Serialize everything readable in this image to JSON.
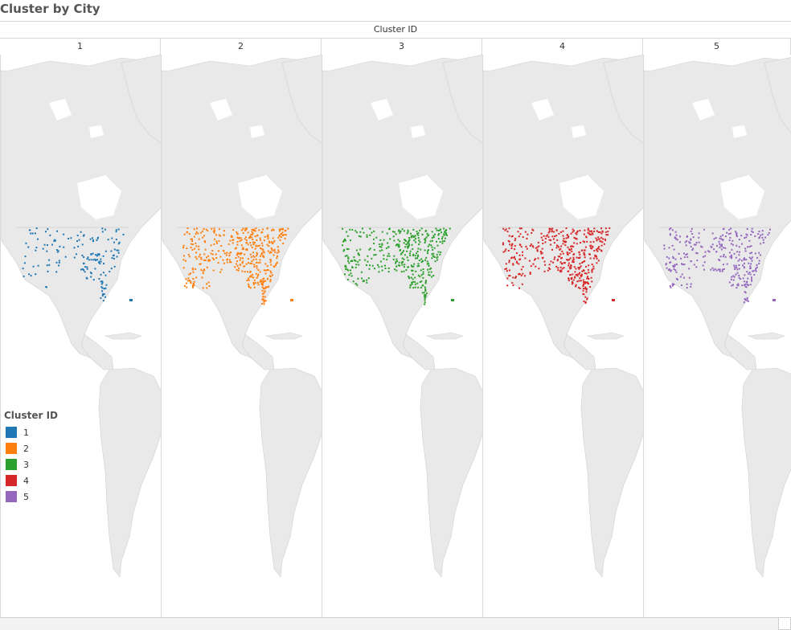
{
  "page": {
    "title": "Cluster by City"
  },
  "header": {
    "field": "Cluster ID"
  },
  "panes": [
    {
      "id": "1",
      "color": "#1f77b4",
      "density": 0.35
    },
    {
      "id": "2",
      "color": "#ff7f0e",
      "density": 1.0
    },
    {
      "id": "3",
      "color": "#2ca02c",
      "density": 0.9
    },
    {
      "id": "4",
      "color": "#d62728",
      "density": 1.0
    },
    {
      "id": "5",
      "color": "#9467bd",
      "density": 0.7
    }
  ],
  "legend": {
    "title": "Cluster ID",
    "items": [
      {
        "label": "1",
        "color": "#1f77b4"
      },
      {
        "label": "2",
        "color": "#ff7f0e"
      },
      {
        "label": "3",
        "color": "#2ca02c"
      },
      {
        "label": "4",
        "color": "#d62728"
      },
      {
        "label": "5",
        "color": "#9467bd"
      }
    ]
  },
  "colors": {
    "land": "#e9e9e9",
    "border": "#d9d9d9",
    "water": "#ffffff"
  }
}
